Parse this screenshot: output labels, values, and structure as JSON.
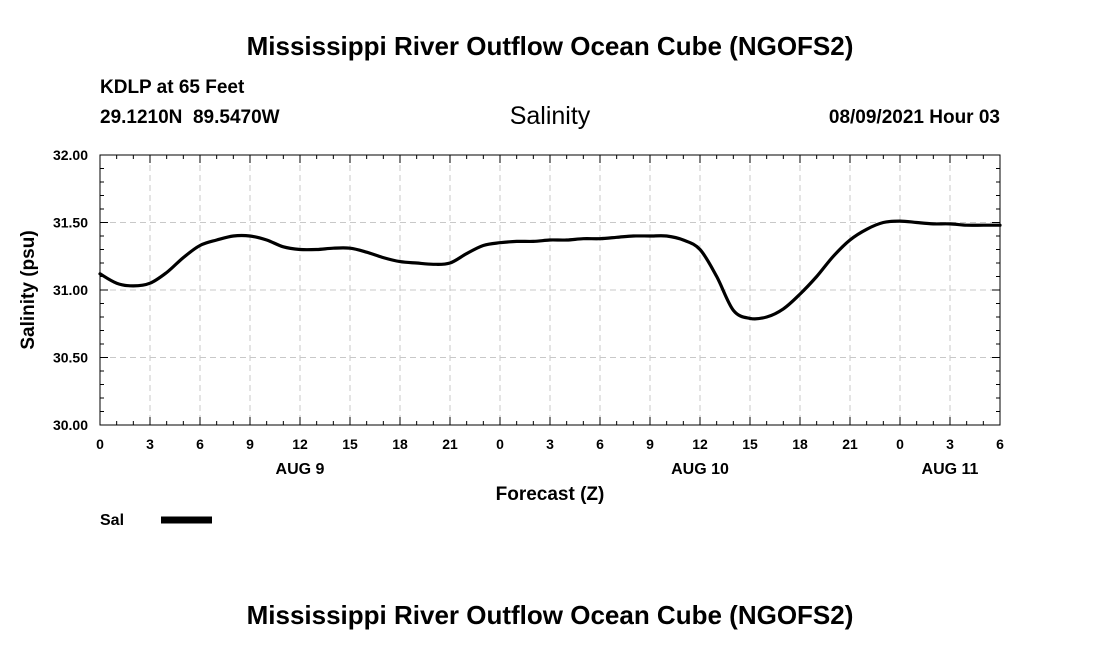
{
  "header": {
    "title": "Mississippi River Outflow Ocean Cube (NGOFS2)",
    "station_line": "KDLP at 65 Feet",
    "coords_line": "29.1210N  89.5470W",
    "datetime_line": "08/09/2021 Hour 03"
  },
  "footer": {
    "title": "Mississippi River Outflow Ocean Cube (NGOFS2)"
  },
  "chart_data": {
    "type": "line",
    "title": "Salinity",
    "xlabel": "Forecast (Z)",
    "ylabel": "Salinity (psu)",
    "xlim": [
      0,
      54
    ],
    "ylim": [
      30.0,
      32.0
    ],
    "grid": true,
    "x_ticks": [
      0,
      3,
      6,
      9,
      12,
      15,
      18,
      21,
      24,
      27,
      30,
      33,
      36,
      39,
      42,
      45,
      48,
      51,
      54
    ],
    "x_tick_labels": [
      "0",
      "3",
      "6",
      "9",
      "12",
      "15",
      "18",
      "21",
      "0",
      "3",
      "6",
      "9",
      "12",
      "15",
      "18",
      "21",
      "0",
      "3",
      "6"
    ],
    "y_ticks": [
      30.0,
      30.5,
      31.0,
      31.5,
      32.0
    ],
    "y_tick_labels": [
      "30.00",
      "30.50",
      "31.00",
      "31.50",
      "32.00"
    ],
    "day_labels": [
      {
        "x": 12,
        "label": "AUG 9"
      },
      {
        "x": 36,
        "label": "AUG 10"
      },
      {
        "x": 51,
        "label": "AUG 11"
      }
    ],
    "legend_position": "bottom-left",
    "series": [
      {
        "name": "Sal",
        "color": "#000000",
        "x": [
          0,
          1,
          2,
          3,
          4,
          5,
          6,
          7,
          8,
          9,
          10,
          11,
          12,
          13,
          14,
          15,
          16,
          17,
          18,
          19,
          20,
          21,
          22,
          23,
          24,
          25,
          26,
          27,
          28,
          29,
          30,
          31,
          32,
          33,
          34,
          35,
          36,
          37,
          38,
          39,
          40,
          41,
          42,
          43,
          44,
          45,
          46,
          47,
          48,
          49,
          50,
          51,
          52,
          53,
          54
        ],
        "values": [
          31.12,
          31.05,
          31.03,
          31.05,
          31.13,
          31.24,
          31.33,
          31.37,
          31.4,
          31.4,
          31.37,
          31.32,
          31.3,
          31.3,
          31.31,
          31.31,
          31.28,
          31.24,
          31.21,
          31.2,
          31.19,
          31.2,
          31.27,
          31.33,
          31.35,
          31.36,
          31.36,
          31.37,
          31.37,
          31.38,
          31.38,
          31.39,
          31.4,
          31.4,
          31.4,
          31.37,
          31.3,
          31.1,
          30.85,
          30.79,
          30.8,
          30.86,
          30.97,
          31.1,
          31.25,
          31.37,
          31.45,
          31.5,
          31.51,
          31.5,
          31.49,
          31.49,
          31.48,
          31.48,
          31.48
        ]
      }
    ]
  }
}
